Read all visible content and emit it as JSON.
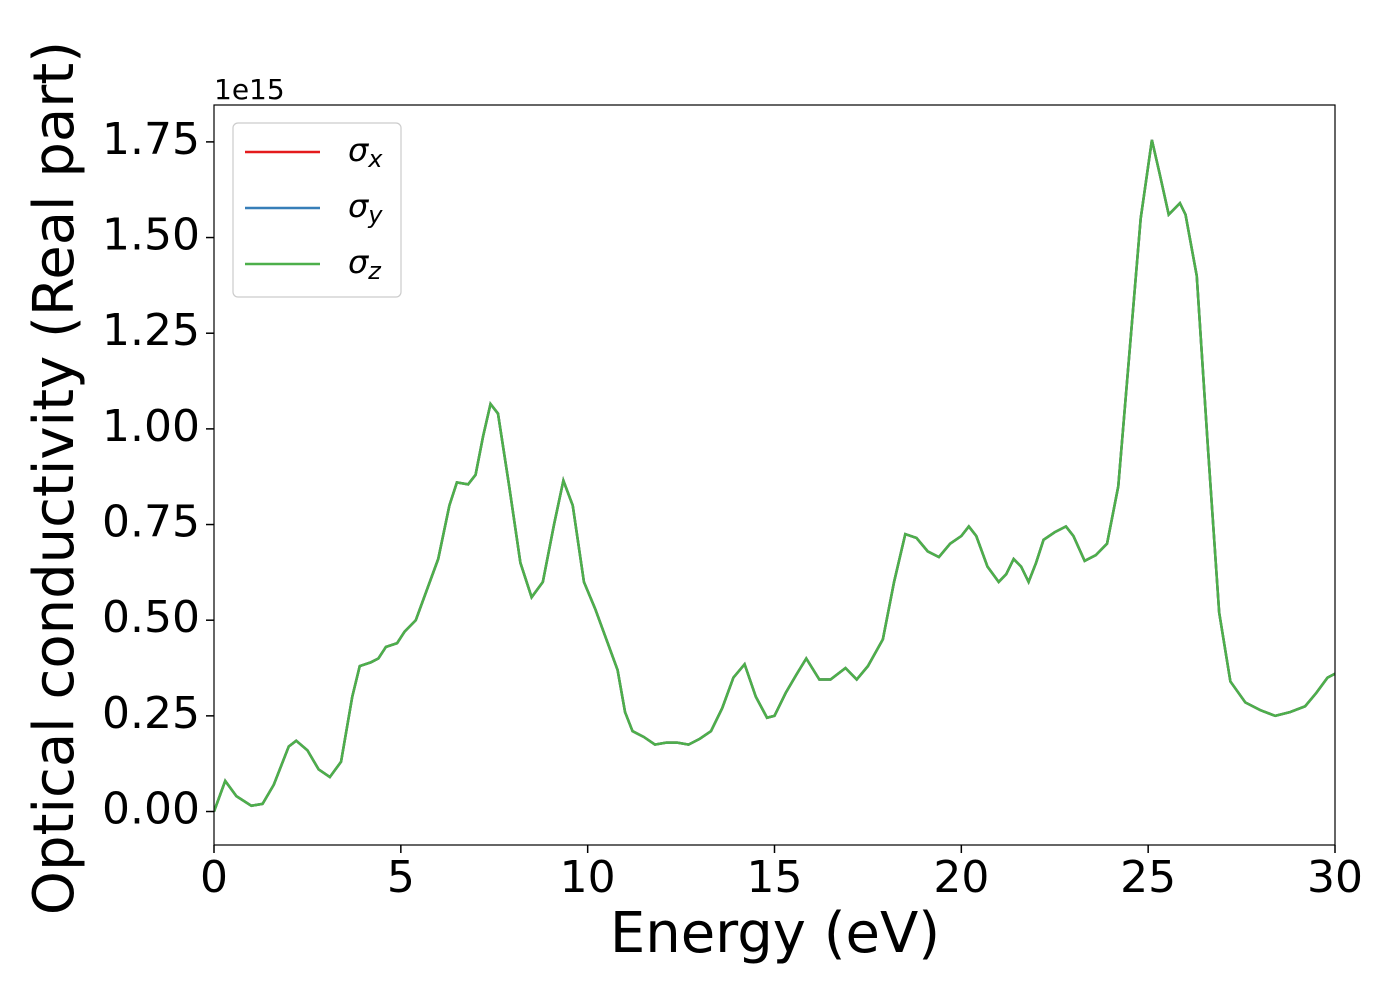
{
  "chart_data": {
    "type": "line",
    "xlabel": "Energy (eV)",
    "ylabel": "Optical conductivity (Real part)",
    "y_offset_label": "1e15",
    "x": [
      0,
      0.3,
      0.6,
      1.0,
      1.3,
      1.6,
      2.0,
      2.2,
      2.5,
      2.8,
      3.1,
      3.4,
      3.7,
      3.9,
      4.2,
      4.4,
      4.6,
      4.9,
      5.1,
      5.4,
      5.7,
      6.0,
      6.3,
      6.5,
      6.8,
      7.0,
      7.2,
      7.4,
      7.6,
      7.9,
      8.2,
      8.5,
      8.8,
      9.1,
      9.35,
      9.6,
      9.9,
      10.2,
      10.5,
      10.8,
      11.0,
      11.2,
      11.5,
      11.8,
      12.1,
      12.4,
      12.7,
      13.0,
      13.3,
      13.6,
      13.9,
      14.2,
      14.5,
      14.8,
      15.0,
      15.3,
      15.6,
      15.85,
      16.2,
      16.5,
      16.9,
      17.2,
      17.5,
      17.9,
      18.2,
      18.5,
      18.8,
      19.1,
      19.4,
      19.7,
      20.0,
      20.2,
      20.4,
      20.7,
      21.0,
      21.2,
      21.4,
      21.6,
      21.8,
      22.0,
      22.2,
      22.5,
      22.8,
      23.0,
      23.3,
      23.6,
      23.9,
      24.2,
      24.5,
      24.8,
      25.1,
      25.3,
      25.55,
      25.85,
      26.0,
      26.3,
      26.6,
      26.9,
      27.2,
      27.6,
      28.0,
      28.4,
      28.8,
      29.2,
      29.5,
      29.8,
      30.0
    ],
    "series": [
      {
        "name": "σx",
        "color": "#e41a1c",
        "values": [
          0.0,
          0.08,
          0.04,
          0.015,
          0.02,
          0.07,
          0.17,
          0.185,
          0.16,
          0.11,
          0.09,
          0.13,
          0.3,
          0.38,
          0.39,
          0.4,
          0.43,
          0.44,
          0.47,
          0.5,
          0.58,
          0.66,
          0.8,
          0.86,
          0.855,
          0.88,
          0.98,
          1.065,
          1.04,
          0.85,
          0.65,
          0.56,
          0.6,
          0.75,
          0.865,
          0.8,
          0.6,
          0.53,
          0.45,
          0.37,
          0.26,
          0.21,
          0.195,
          0.175,
          0.18,
          0.18,
          0.175,
          0.19,
          0.21,
          0.27,
          0.35,
          0.385,
          0.3,
          0.245,
          0.25,
          0.31,
          0.36,
          0.4,
          0.345,
          0.345,
          0.375,
          0.345,
          0.38,
          0.45,
          0.6,
          0.725,
          0.715,
          0.68,
          0.665,
          0.7,
          0.72,
          0.745,
          0.72,
          0.64,
          0.6,
          0.62,
          0.66,
          0.64,
          0.6,
          0.65,
          0.71,
          0.73,
          0.745,
          0.72,
          0.655,
          0.67,
          0.7,
          0.85,
          1.2,
          1.55,
          1.755,
          1.67,
          1.56,
          1.59,
          1.56,
          1.4,
          0.95,
          0.52,
          0.34,
          0.285,
          0.265,
          0.25,
          0.26,
          0.275,
          0.31,
          0.35,
          0.36
        ]
      },
      {
        "name": "σy",
        "color": "#377eb8",
        "values": [
          0.0,
          0.08,
          0.04,
          0.015,
          0.02,
          0.07,
          0.17,
          0.185,
          0.16,
          0.11,
          0.09,
          0.13,
          0.3,
          0.38,
          0.39,
          0.4,
          0.43,
          0.44,
          0.47,
          0.5,
          0.58,
          0.66,
          0.8,
          0.86,
          0.855,
          0.88,
          0.98,
          1.065,
          1.04,
          0.85,
          0.65,
          0.56,
          0.6,
          0.75,
          0.865,
          0.8,
          0.6,
          0.53,
          0.45,
          0.37,
          0.26,
          0.21,
          0.195,
          0.175,
          0.18,
          0.18,
          0.175,
          0.19,
          0.21,
          0.27,
          0.35,
          0.385,
          0.3,
          0.245,
          0.25,
          0.31,
          0.36,
          0.4,
          0.345,
          0.345,
          0.375,
          0.345,
          0.38,
          0.45,
          0.6,
          0.725,
          0.715,
          0.68,
          0.665,
          0.7,
          0.72,
          0.745,
          0.72,
          0.64,
          0.6,
          0.62,
          0.66,
          0.64,
          0.6,
          0.65,
          0.71,
          0.73,
          0.745,
          0.72,
          0.655,
          0.67,
          0.7,
          0.85,
          1.2,
          1.55,
          1.755,
          1.67,
          1.56,
          1.59,
          1.56,
          1.4,
          0.95,
          0.52,
          0.34,
          0.285,
          0.265,
          0.25,
          0.26,
          0.275,
          0.31,
          0.35,
          0.36
        ]
      },
      {
        "name": "σz",
        "color": "#4daf4a",
        "values": [
          0.0,
          0.08,
          0.04,
          0.015,
          0.02,
          0.07,
          0.17,
          0.185,
          0.16,
          0.11,
          0.09,
          0.13,
          0.3,
          0.38,
          0.39,
          0.4,
          0.43,
          0.44,
          0.47,
          0.5,
          0.58,
          0.66,
          0.8,
          0.86,
          0.855,
          0.88,
          0.98,
          1.065,
          1.04,
          0.85,
          0.65,
          0.56,
          0.6,
          0.75,
          0.865,
          0.8,
          0.6,
          0.53,
          0.45,
          0.37,
          0.26,
          0.21,
          0.195,
          0.175,
          0.18,
          0.18,
          0.175,
          0.19,
          0.21,
          0.27,
          0.35,
          0.385,
          0.3,
          0.245,
          0.25,
          0.31,
          0.36,
          0.4,
          0.345,
          0.345,
          0.375,
          0.345,
          0.38,
          0.45,
          0.6,
          0.725,
          0.715,
          0.68,
          0.665,
          0.7,
          0.72,
          0.745,
          0.72,
          0.64,
          0.6,
          0.62,
          0.66,
          0.64,
          0.6,
          0.65,
          0.71,
          0.73,
          0.745,
          0.72,
          0.655,
          0.67,
          0.7,
          0.85,
          1.2,
          1.55,
          1.755,
          1.67,
          1.56,
          1.59,
          1.56,
          1.4,
          0.95,
          0.52,
          0.34,
          0.285,
          0.265,
          0.25,
          0.26,
          0.275,
          0.31,
          0.35,
          0.36
        ]
      }
    ],
    "xlim": [
      0,
      30
    ],
    "xticks": [
      0,
      5,
      10,
      15,
      20,
      25,
      30
    ],
    "ylim": [
      -0.0875,
      1.8464
    ],
    "yticks": [
      {
        "value": 0,
        "label": "0.00"
      },
      {
        "value": 0.25,
        "label": "0.25"
      },
      {
        "value": 0.5,
        "label": "0.50"
      },
      {
        "value": 0.75,
        "label": "0.75"
      },
      {
        "value": 1,
        "label": "1.00"
      },
      {
        "value": 1.25,
        "label": "1.25"
      },
      {
        "value": 1.5,
        "label": "1.50"
      },
      {
        "value": 1.75,
        "label": "1.75"
      }
    ],
    "legend": "upper left",
    "grid": false
  }
}
